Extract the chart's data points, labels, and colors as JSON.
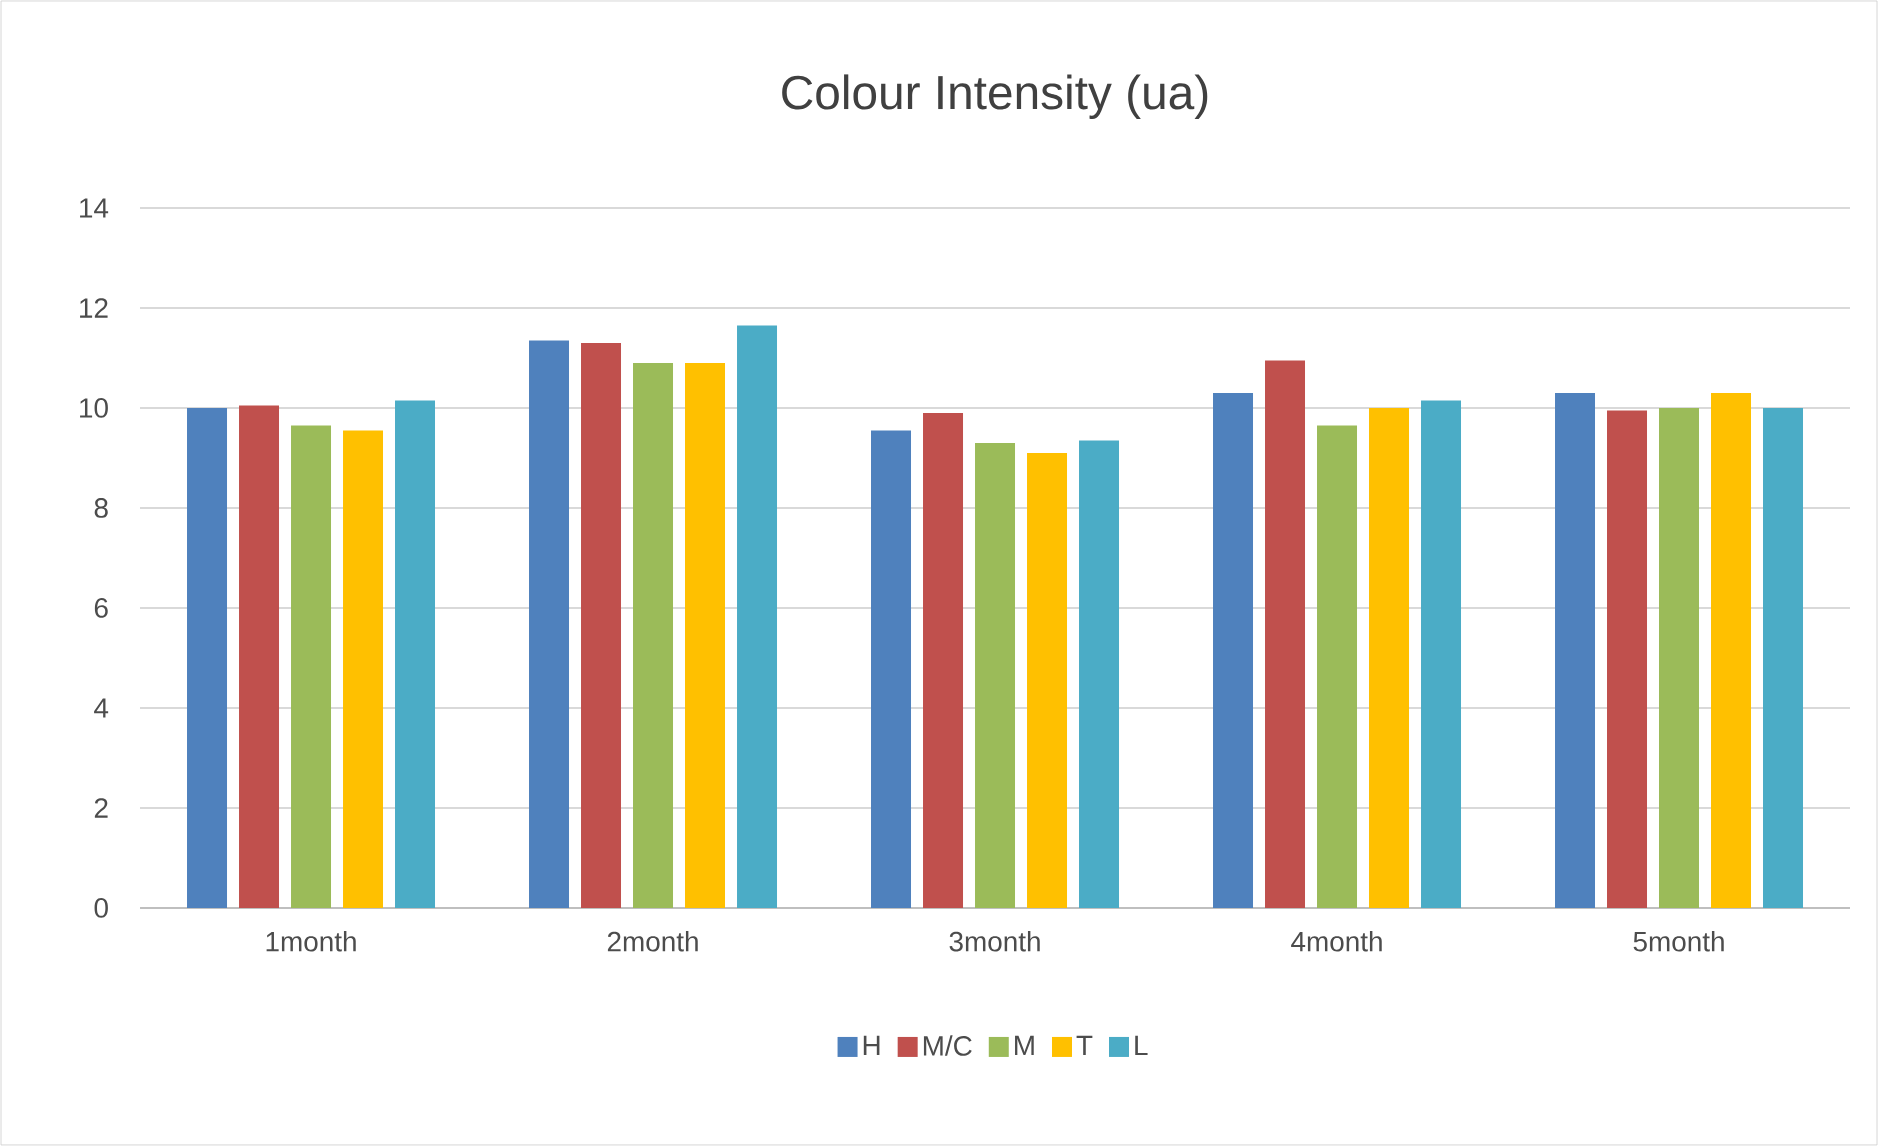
{
  "chart_data": {
    "type": "bar",
    "title": "Colour Intensity (ua)",
    "categories": [
      "1month",
      "2month",
      "3month",
      "4month",
      "5month"
    ],
    "series": [
      {
        "name": "H",
        "color": "#4f81bd",
        "values": [
          10.0,
          11.35,
          9.55,
          10.3,
          10.3
        ]
      },
      {
        "name": "M/C",
        "color": "#c0504d",
        "values": [
          10.05,
          11.3,
          9.9,
          10.95,
          9.95
        ]
      },
      {
        "name": "M",
        "color": "#9bbb59",
        "values": [
          9.65,
          10.9,
          9.3,
          9.65,
          10.0
        ]
      },
      {
        "name": "T",
        "color": "#ffc000",
        "values": [
          9.55,
          10.9,
          9.1,
          10.0,
          10.3
        ]
      },
      {
        "name": "L",
        "color": "#4bacc6",
        "values": [
          10.15,
          11.65,
          9.35,
          10.15,
          10.0
        ]
      }
    ],
    "ylim": [
      0,
      14
    ],
    "yticks": [
      0,
      2,
      4,
      6,
      8,
      10,
      12,
      14
    ],
    "grid": "y",
    "legend": "bottom"
  }
}
